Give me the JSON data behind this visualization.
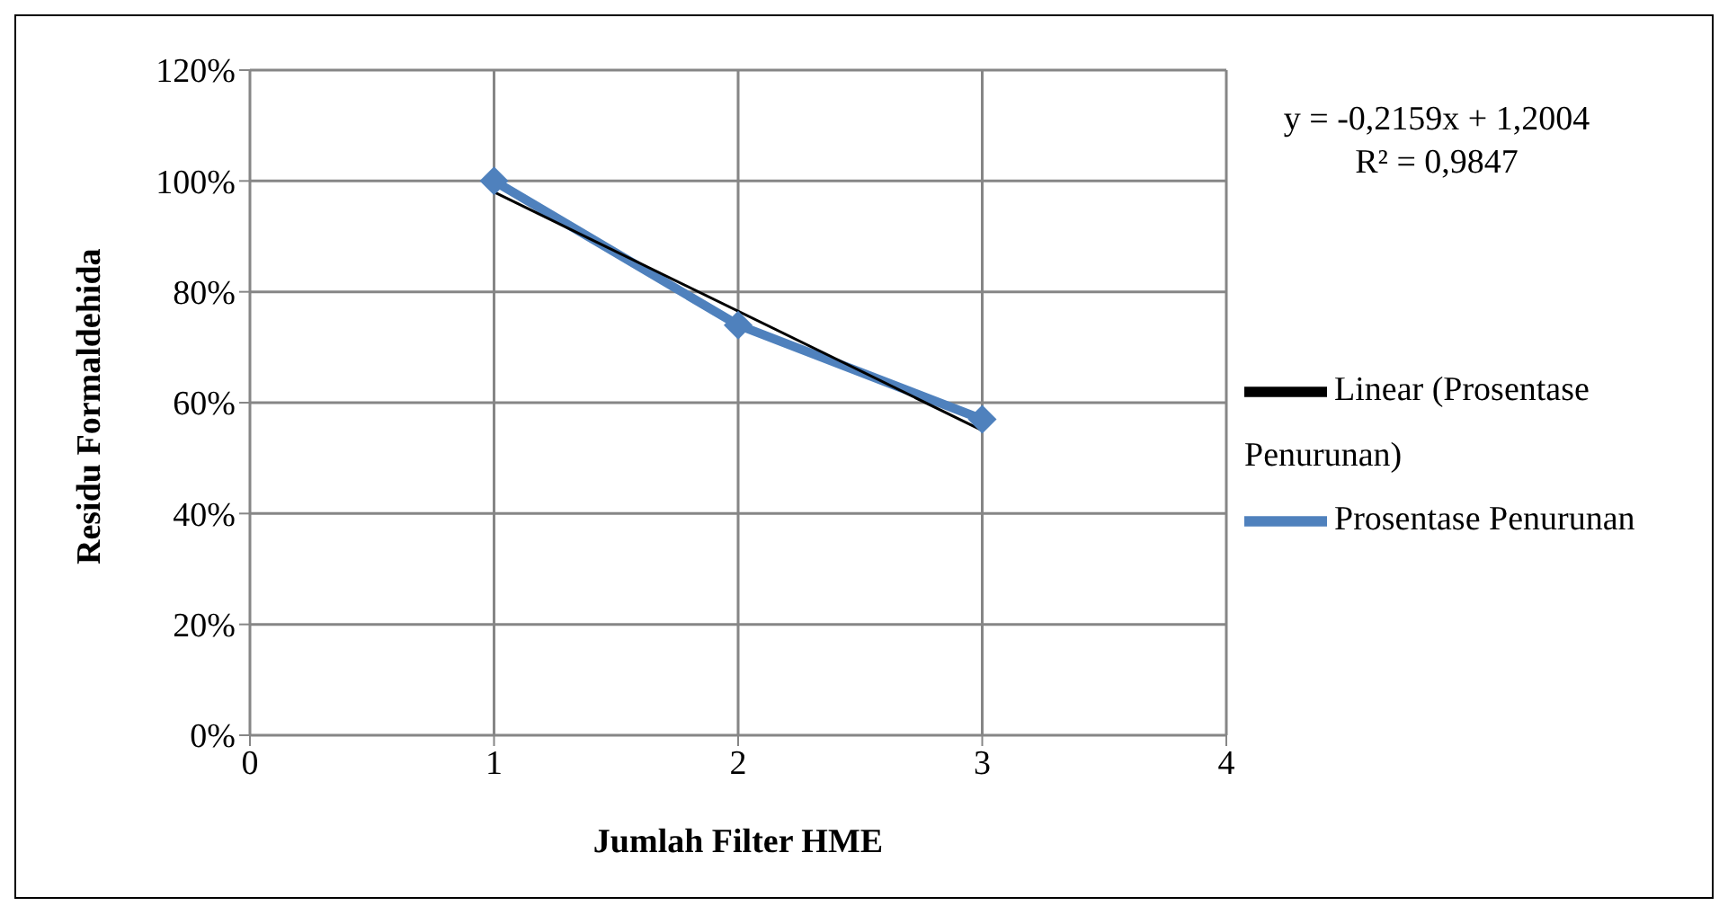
{
  "chart_data": {
    "type": "line",
    "xlabel": "Jumlah Filter HME",
    "ylabel": "Residu Formaldehida",
    "xlim": [
      0,
      4
    ],
    "xticks": [
      0,
      1,
      2,
      3,
      4
    ],
    "ylim": [
      0,
      120
    ],
    "yticks": [
      {
        "value": 0,
        "label": "0%"
      },
      {
        "value": 20,
        "label": "20%"
      },
      {
        "value": 40,
        "label": "40%"
      },
      {
        "value": 60,
        "label": "60%"
      },
      {
        "value": 80,
        "label": "80%"
      },
      {
        "value": 100,
        "label": "100%"
      },
      {
        "value": 120,
        "label": "120%"
      }
    ],
    "grid": true,
    "legend": "right",
    "line_style": "solid",
    "series": [
      {
        "name": "Prosentase Penurunan",
        "color": "#4f81bd",
        "x": [
          1,
          2,
          3
        ],
        "values": [
          100,
          74,
          57
        ],
        "marker": "diamond"
      },
      {
        "name": "Linear (Prosentase Penurunan)",
        "type": "line",
        "color": "#000000",
        "x": [
          1,
          3
        ],
        "values": [
          98,
          55
        ],
        "marker": "none"
      }
    ],
    "annotations": [
      "y = -0,2159x + 1,2004",
      "R² = 0,9847"
    ]
  }
}
